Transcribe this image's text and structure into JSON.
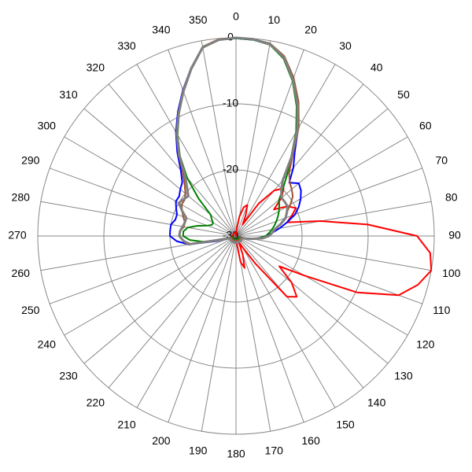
{
  "chart_data": {
    "type": "polar",
    "rlim": [
      -30,
      0
    ],
    "rticks": [
      -30,
      -20,
      -10,
      0
    ],
    "thetaticks": [
      0,
      10,
      20,
      30,
      40,
      50,
      60,
      70,
      80,
      90,
      100,
      110,
      120,
      130,
      140,
      150,
      160,
      170,
      180,
      190,
      200,
      210,
      220,
      230,
      240,
      250,
      260,
      270,
      280,
      290,
      300,
      310,
      320,
      330,
      340,
      350
    ],
    "theta": [
      0,
      5,
      10,
      15,
      20,
      25,
      30,
      35,
      40,
      45,
      50,
      55,
      60,
      65,
      70,
      75,
      80,
      85,
      90,
      95,
      100,
      105,
      110,
      115,
      120,
      125,
      130,
      135,
      140,
      145,
      150,
      155,
      160,
      165,
      170,
      175,
      180,
      185,
      190,
      195,
      200,
      205,
      210,
      215,
      220,
      225,
      230,
      235,
      240,
      245,
      250,
      255,
      260,
      265,
      270,
      275,
      280,
      285,
      290,
      295,
      300,
      305,
      310,
      315,
      320,
      325,
      330,
      335,
      340,
      345,
      350,
      355
    ],
    "series": [
      {
        "color": "#ff0000",
        "values": [
          -30,
          -29,
          -27,
          -25.5,
          -25,
          -26.5,
          -28,
          -24,
          -21,
          -19.8,
          -21,
          -23,
          -21,
          -20,
          -21,
          -22,
          -17,
          -10,
          -2.6,
          -0.5,
          0,
          -1.5,
          -3.8,
          -9.8,
          -18,
          -22,
          -19,
          -17,
          -18,
          -25,
          -28,
          -29,
          -27,
          -25,
          -26,
          -29,
          -29.5,
          -29.5,
          -29.5,
          -29.5,
          -29.5,
          -29.5,
          -29.5,
          -29.5,
          -29.5,
          -29.5,
          -29.5,
          -29.5,
          -29.5,
          -29.5,
          -29.5,
          -29.5,
          -29.5,
          -29.5,
          -29.5,
          -29.5,
          -29.5,
          -29.5,
          -29.5,
          -29.5,
          -29.5,
          -29.5,
          -29.5,
          -29.5,
          -29.5,
          -29.5,
          -29.5,
          -29.5,
          -29.5,
          -29.5,
          -29.5,
          -29.5
        ]
      },
      {
        "color": "#0000ff",
        "values": [
          -0.1,
          -0.2,
          -0.6,
          -2.1,
          -4.9,
          -8,
          -11.2,
          -14.5,
          -16.5,
          -18.6,
          -17.6,
          -18,
          -18.7,
          -19.5,
          -20.5,
          -22,
          -23.3,
          -24.5,
          -25.5,
          -26.5,
          -27.5,
          -28.5,
          -29.5,
          -29.5,
          -29.5,
          -29.5,
          -29.5,
          -29.5,
          -29.5,
          -29.5,
          -29.5,
          -29.5,
          -29.5,
          -29.5,
          -29.5,
          -29.5,
          -29.5,
          -29.5,
          -29.5,
          -29.5,
          -29.5,
          -29.5,
          -29.5,
          -29.5,
          -29.5,
          -29.5,
          -29.5,
          -29.5,
          -29.5,
          -29.5,
          -29.5,
          -27,
          -22.7,
          -21,
          -20,
          -20,
          -20,
          -20.5,
          -20.5,
          -20,
          -19.5,
          -19.5,
          -19,
          -18.5,
          -17,
          -14.5,
          -11.8,
          -9.2,
          -6.5,
          -3.7,
          -1,
          -0.2
        ]
      },
      {
        "color": "#008000",
        "values": [
          -0.1,
          -0.2,
          -0.6,
          -2.2,
          -5,
          -8.3,
          -11.8,
          -15.5,
          -18,
          -20,
          -21.5,
          -22,
          -22.5,
          -23,
          -23.5,
          -24,
          -24.5,
          -25,
          -25.5,
          -26.5,
          -27.5,
          -28.5,
          -29.5,
          -29.5,
          -29.5,
          -29.5,
          -29.5,
          -29.5,
          -29.5,
          -29.5,
          -29.5,
          -29.5,
          -29.5,
          -29.5,
          -29.5,
          -29.5,
          -29.5,
          -29.5,
          -29.5,
          -29.5,
          -29.5,
          -29.5,
          -29.5,
          -29.5,
          -29.5,
          -29.5,
          -29.5,
          -29.5,
          -29.5,
          -29.5,
          -29.5,
          -28,
          -25,
          -23,
          -22,
          -22,
          -22.6,
          -24,
          -25.4,
          -26,
          -26,
          -25.5,
          -25,
          -22,
          -18.5,
          -15.2,
          -12.3,
          -9.6,
          -6.8,
          -3.9,
          -1.1,
          -0.2
        ]
      },
      {
        "color": "#a0522d",
        "values": [
          0,
          -0.1,
          -0.4,
          -1.8,
          -4.5,
          -7.6,
          -11,
          -15,
          -17.5,
          -18.5,
          -19,
          -19.5,
          -20.5,
          -21.5,
          -22,
          -23,
          -24,
          -24.5,
          -25,
          -26,
          -27.5,
          -28.5,
          -29.3,
          -29.3,
          -29.3,
          -29.3,
          -29.3,
          -29.3,
          -29.3,
          -29.3,
          -29.3,
          -29.3,
          -29.3,
          -29.3,
          -29.3,
          -29.3,
          -29.3,
          -29.3,
          -29.3,
          -29.3,
          -29.3,
          -29.3,
          -29.3,
          -29.3,
          -29.3,
          -29.3,
          -29.3,
          -29.3,
          -29.3,
          -29.3,
          -29.3,
          -27.5,
          -23,
          -22,
          -21.5,
          -21.5,
          -22,
          -22,
          -21.5,
          -21,
          -20.5,
          -20.5,
          -20,
          -19,
          -17.5,
          -14.8,
          -12,
          -9.4,
          -6.6,
          -3.7,
          -0.9,
          -0.1
        ]
      },
      {
        "color": "#808080",
        "values": [
          0,
          -0.1,
          -0.5,
          -2,
          -4.8,
          -8,
          -11.4,
          -15.3,
          -19,
          -20.3,
          -21,
          -21,
          -21,
          -21.5,
          -22,
          -23,
          -24,
          -24.5,
          -25,
          -26,
          -27.5,
          -28.5,
          -29,
          -29,
          -29,
          -29,
          -29,
          -29,
          -29,
          -29,
          -29,
          -29,
          -29,
          -29,
          -29,
          -29,
          -29,
          -29,
          -29,
          -29,
          -29,
          -29,
          -29,
          -29,
          -29,
          -29,
          -29,
          -29,
          -29,
          -29,
          -29,
          -28,
          -22.7,
          -22,
          -21.4,
          -21.5,
          -21.8,
          -22,
          -22,
          -21,
          -20,
          -20.3,
          -20.6,
          -19.5,
          -18,
          -15,
          -12.1,
          -9.5,
          -6.7,
          -3.8,
          -1,
          -0.2
        ]
      }
    ]
  }
}
